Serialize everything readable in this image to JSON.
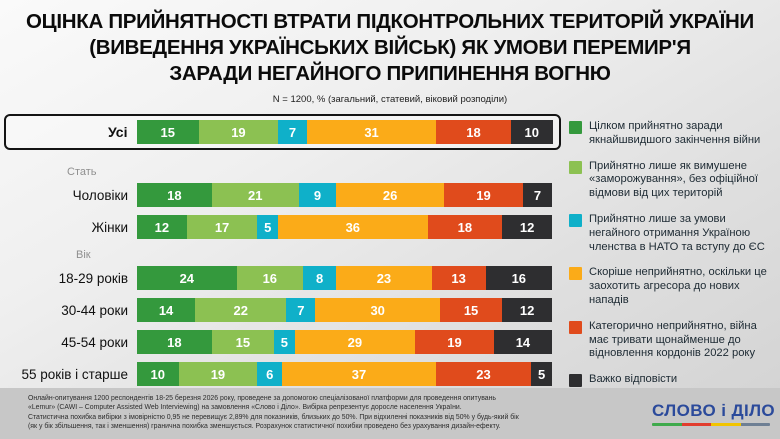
{
  "header": {
    "title_lines": [
      "ОЦІНКА ПРИЙНЯТНОСТІ ВТРАТИ ПІДКОНТРОЛЬНИХ ТЕРИТОРІЙ УКРАЇНИ",
      "(ВИВЕДЕННЯ УКРАЇНСЬКИХ ВІЙСЬК) ЯК УМОВИ ПЕРЕМИР'Я",
      "ЗАРАДИ НЕГАЙНОГО ПРИПИНЕННЯ ВОГНЮ"
    ],
    "subtitle": "N = 1200, % (загальний, статевий, віковий розподіли)"
  },
  "chart_data": {
    "type": "bar",
    "orientation": "horizontal-stacked",
    "unit": "%",
    "xlim": [
      0,
      100
    ],
    "categories": [
      "Усі",
      "Чоловіки",
      "Жінки",
      "18-29 років",
      "30-44 роки",
      "45-54 роки",
      "55 років і старше"
    ],
    "groups": [
      {
        "label": "Стать",
        "start_index": 1
      },
      {
        "label": "Вік",
        "start_index": 3
      }
    ],
    "highlighted_category": "Усі",
    "series": [
      {
        "name": "Цілком прийнятно заради якнайшвидшого закінчення війни",
        "color": "#34993d",
        "values": [
          15,
          18,
          12,
          24,
          14,
          18,
          10
        ]
      },
      {
        "name": "Прийнятно лише як вимушене «заморожування», без офіційної відмови від цих територій",
        "color": "#8cc152",
        "values": [
          19,
          21,
          17,
          16,
          22,
          15,
          19
        ]
      },
      {
        "name": "Прийнятно лише за умови негайного отримання Україною членства в НАТО та вступу до ЄС",
        "color": "#0fb0c9",
        "values": [
          7,
          9,
          5,
          8,
          7,
          5,
          6
        ]
      },
      {
        "name": "Скоріше неприйнятно, оскільки це заохотить агресора до нових нападів",
        "color": "#fbab18",
        "values": [
          31,
          26,
          36,
          23,
          30,
          29,
          37
        ]
      },
      {
        "name": "Категорично неприйнятно, війна має тривати щонайменше до відновлення кордонів 2022 року",
        "color": "#e04b1c",
        "values": [
          18,
          19,
          18,
          13,
          15,
          19,
          23
        ]
      },
      {
        "name": "Важко відповісти",
        "color": "#2e2e30",
        "values": [
          10,
          7,
          12,
          16,
          12,
          14,
          5
        ]
      }
    ]
  },
  "footer": {
    "lines": [
      "Онлайн-опитування 1200 респондентів 18-25 березня 2026 року, проведене за допомогою спеціалізованої платформи для проведення опитувань",
      "«Lemur» (CAWI – Computer Assisted Web Interviewing) на замовлення «Слово і Діло». Вибірка репрезентує доросле населення України.",
      "Статистична похибка вибірки з імовірністю 0,95 не перевищує 2,89% для показників, близьких до 50%. При відхиленні показників від 50% у будь-який бік",
      "(як у бік збільшення, так і зменшення) гранична похибка зменшується. Розрахунок статистичної похибки проведено без урахування дизайн-ефекту."
    ],
    "logo_text": "СЛОВО і ДІЛО",
    "logo_color": "#2b4a9b",
    "logo_underline_colors": [
      "#3faa4c",
      "#e23d2e",
      "#f2c400",
      "#6e7f94"
    ]
  }
}
